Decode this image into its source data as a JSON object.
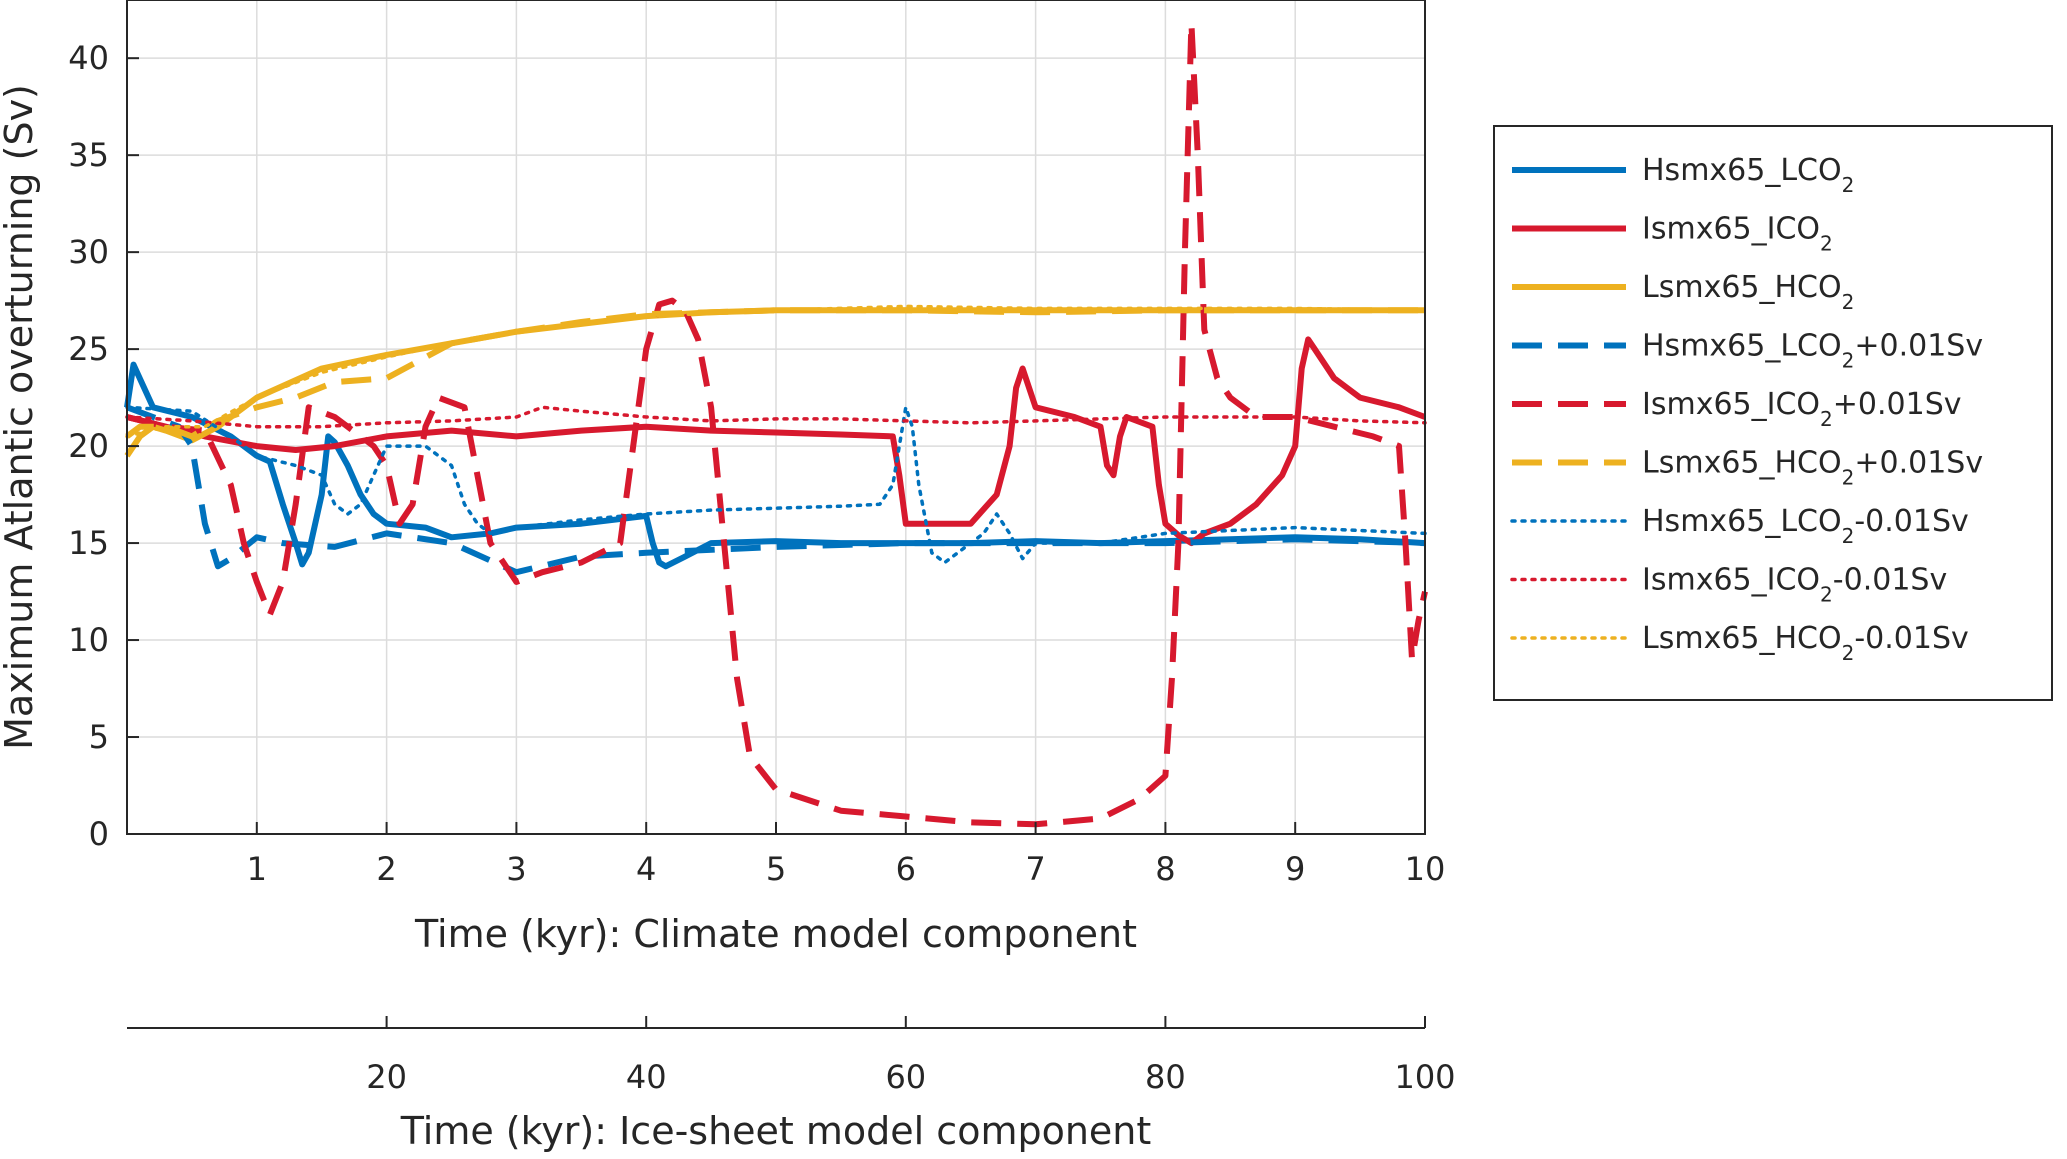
{
  "chart_data": {
    "type": "line",
    "ylabel": "Maximum Atlantic overturning (Sv)",
    "xlabel": "Time (kyr): Climate model component",
    "x2label": "Time (kyr): Ice-sheet model component",
    "xlim": [
      0,
      10
    ],
    "ylim": [
      0,
      43
    ],
    "x2lim": [
      0,
      100
    ],
    "xticks": [
      1,
      2,
      3,
      4,
      5,
      6,
      7,
      8,
      9,
      10
    ],
    "yticks": [
      0,
      5,
      10,
      15,
      20,
      25,
      30,
      35,
      40
    ],
    "x2ticks": [
      20,
      40,
      60,
      80,
      100
    ],
    "grid": true,
    "legend_position": "outside-right",
    "series": [
      {
        "name": "Hsmx65_LCO",
        "sub": "2",
        "suffix": "",
        "color": "#0072BD",
        "style": "solid",
        "x": [
          0,
          0.05,
          0.2,
          0.5,
          0.8,
          1.0,
          1.1,
          1.2,
          1.3,
          1.35,
          1.4,
          1.5,
          1.55,
          1.6,
          1.7,
          1.8,
          1.9,
          2.0,
          2.3,
          2.5,
          2.8,
          3.0,
          3.5,
          4.0,
          4.05,
          4.1,
          4.15,
          4.3,
          4.5,
          5,
          5.5,
          6,
          6.5,
          7,
          7.5,
          8,
          8.5,
          9,
          9.5,
          10
        ],
        "values": [
          22,
          24.2,
          22,
          21.5,
          20.5,
          19.5,
          19.2,
          17,
          15,
          13.9,
          14.5,
          17.5,
          20.5,
          20.2,
          19,
          17.5,
          16.5,
          16,
          15.8,
          15.3,
          15.5,
          15.8,
          16,
          16.4,
          15,
          14,
          13.8,
          14.3,
          15,
          15.1,
          15,
          15,
          15,
          15.1,
          15,
          15.1,
          15.2,
          15.3,
          15.2,
          15
        ]
      },
      {
        "name": "Ismx65_ICO",
        "sub": "2",
        "suffix": "",
        "color": "#D7192E",
        "style": "solid",
        "x": [
          0,
          0.3,
          0.6,
          1.0,
          1.3,
          1.6,
          2.0,
          2.5,
          3.0,
          3.5,
          4.0,
          4.5,
          5.0,
          5.5,
          5.9,
          5.95,
          6.0,
          6.2,
          6.5,
          6.7,
          6.8,
          6.85,
          6.9,
          7.0,
          7.3,
          7.5,
          7.55,
          7.6,
          7.65,
          7.7,
          7.9,
          7.95,
          8.0,
          8.1,
          8.2,
          8.3,
          8.5,
          8.7,
          8.9,
          9.0,
          9.05,
          9.1,
          9.15,
          9.3,
          9.5,
          9.8,
          10
        ],
        "values": [
          21.5,
          21.0,
          20.5,
          20.0,
          19.8,
          20.0,
          20.5,
          20.8,
          20.5,
          20.8,
          21.0,
          20.8,
          20.7,
          20.6,
          20.5,
          18.5,
          16.0,
          16.0,
          16.0,
          17.5,
          20.0,
          23.0,
          24.0,
          22.0,
          21.5,
          21.0,
          19.0,
          18.5,
          20.5,
          21.5,
          21.0,
          18.0,
          16.0,
          15.4,
          15.0,
          15.5,
          16.0,
          17.0,
          18.5,
          20.0,
          24.0,
          25.5,
          25.0,
          23.5,
          22.5,
          22.0,
          21.5
        ]
      },
      {
        "name": "Lsmx65_HCO",
        "sub": "2",
        "suffix": "",
        "color": "#EDB120",
        "style": "solid",
        "x": [
          0,
          0.1,
          0.2,
          0.3,
          0.5,
          0.7,
          1.0,
          1.5,
          2.0,
          2.5,
          3.0,
          3.5,
          4.0,
          4.5,
          5.0,
          6.0,
          7.0,
          8.0,
          9.0,
          10.0
        ],
        "values": [
          19.5,
          20.5,
          21,
          20.8,
          20.3,
          21.0,
          22.5,
          24.0,
          24.7,
          25.3,
          25.9,
          26.3,
          26.7,
          26.9,
          27.0,
          27.0,
          27.0,
          27.0,
          27.0,
          27.0
        ]
      },
      {
        "name": "Hsmx65_LCO",
        "sub": "2",
        "suffix": "+0.01Sv",
        "color": "#0072BD",
        "style": "dashed",
        "x": [
          0,
          0.2,
          0.4,
          0.5,
          0.6,
          0.7,
          0.8,
          1.0,
          1.2,
          1.6,
          2.0,
          2.5,
          3.0,
          3.5,
          4.0,
          5.0,
          6.0,
          7.0,
          8.0,
          9.0,
          10.0
        ],
        "values": [
          22,
          21.5,
          21.0,
          20.0,
          16.0,
          13.8,
          14.2,
          15.3,
          15.0,
          14.8,
          15.5,
          15.0,
          13.5,
          14.3,
          14.5,
          14.8,
          15.0,
          15.0,
          15.0,
          15.2,
          15.0
        ]
      },
      {
        "name": "Ismx65_ICO",
        "sub": "2",
        "suffix": "+0.01Sv",
        "color": "#D7192E",
        "style": "dashed",
        "x": [
          0,
          0.3,
          0.6,
          0.8,
          0.9,
          1.0,
          1.1,
          1.2,
          1.3,
          1.4,
          1.6,
          1.9,
          2.0,
          2.1,
          2.2,
          2.3,
          2.4,
          2.6,
          2.8,
          3.0,
          3.2,
          3.5,
          3.8,
          4.0,
          4.1,
          4.2,
          4.3,
          4.4,
          4.5,
          4.6,
          4.7,
          4.8,
          5.0,
          5.5,
          6.0,
          6.5,
          7.0,
          7.5,
          7.8,
          8.0,
          8.05,
          8.1,
          8.15,
          8.2,
          8.25,
          8.3,
          8.4,
          8.5,
          8.7,
          9.0,
          9.3,
          9.6,
          9.8,
          9.85,
          9.9,
          9.95,
          10.0
        ],
        "values": [
          21.5,
          21.0,
          20.8,
          18.0,
          15.0,
          13.0,
          11.3,
          13.0,
          17.0,
          22.0,
          21.5,
          20.0,
          19.0,
          16.0,
          17.0,
          21.0,
          22.5,
          22.0,
          15.0,
          13.0,
          13.5,
          14.0,
          15.0,
          25.0,
          27.3,
          27.5,
          27.0,
          25.5,
          22.0,
          15.0,
          8.0,
          4.0,
          2.3,
          1.2,
          0.9,
          0.6,
          0.5,
          0.8,
          1.8,
          3.0,
          8.0,
          15.0,
          30.0,
          41.8,
          35.0,
          26.0,
          23.5,
          22.5,
          21.5,
          21.5,
          21.0,
          20.5,
          20.0,
          15.0,
          9.0,
          11.0,
          12.5
        ]
      },
      {
        "name": "Lsmx65_HCO",
        "sub": "2",
        "suffix": "+0.01Sv",
        "color": "#EDB120",
        "style": "dashed",
        "x": [
          0,
          0.1,
          0.3,
          0.5,
          0.7,
          1.0,
          1.3,
          1.6,
          2.0,
          2.5,
          3.0,
          3.5,
          4.0,
          5.0,
          6.0,
          7.0,
          8.0,
          9.0,
          10.0
        ],
        "values": [
          20.5,
          21.0,
          21.0,
          20.5,
          21.3,
          22.0,
          22.5,
          23.3,
          23.5,
          25.3,
          25.9,
          26.4,
          26.8,
          27.0,
          27.0,
          26.9,
          27.0,
          27.0,
          27.0
        ]
      },
      {
        "name": "Hsmx65_LCO",
        "sub": "2",
        "suffix": "-0.01Sv",
        "color": "#0072BD",
        "style": "dotted",
        "x": [
          0,
          0.5,
          0.8,
          1.0,
          1.3,
          1.5,
          1.6,
          1.7,
          1.8,
          2.0,
          2.3,
          2.5,
          2.6,
          2.7,
          2.8,
          3.0,
          3.5,
          4.0,
          4.5,
          5.0,
          5.5,
          5.8,
          5.9,
          6.0,
          6.05,
          6.1,
          6.2,
          6.3,
          6.4,
          6.5,
          6.6,
          6.7,
          6.8,
          6.9,
          7.0,
          7.2,
          7.5,
          8.0,
          9.0,
          10.0
        ],
        "values": [
          22.0,
          21.8,
          20.5,
          19.5,
          19.0,
          18.5,
          17.0,
          16.5,
          17.0,
          20.0,
          20.0,
          19.0,
          17.0,
          16.0,
          15.5,
          15.8,
          16.2,
          16.5,
          16.7,
          16.8,
          16.9,
          17.0,
          18.0,
          22.0,
          21.0,
          18.0,
          14.5,
          14.0,
          14.5,
          15.0,
          15.5,
          16.5,
          15.5,
          14.2,
          15.0,
          15.0,
          15.0,
          15.5,
          15.8,
          15.5
        ]
      },
      {
        "name": "Ismx65_ICO",
        "sub": "2",
        "suffix": "-0.01Sv",
        "color": "#D7192E",
        "style": "dotted",
        "x": [
          0,
          0.5,
          1.0,
          1.5,
          2.0,
          2.5,
          3.0,
          3.2,
          3.5,
          4.0,
          4.5,
          5.0,
          5.5,
          6.0,
          6.5,
          7.0,
          7.5,
          8.0,
          8.5,
          9.0,
          9.5,
          10.0
        ],
        "values": [
          21.5,
          21.3,
          21.0,
          21.0,
          21.2,
          21.3,
          21.5,
          22.0,
          21.8,
          21.5,
          21.3,
          21.4,
          21.4,
          21.3,
          21.2,
          21.3,
          21.4,
          21.5,
          21.5,
          21.5,
          21.3,
          21.2
        ]
      },
      {
        "name": "Lsmx65_HCO",
        "sub": "2",
        "suffix": "-0.01Sv",
        "color": "#EDB120",
        "style": "dotted",
        "x": [
          0,
          0.3,
          0.6,
          1.0,
          1.5,
          2.0,
          2.5,
          3.0,
          3.5,
          4.0,
          5.0,
          6.0,
          7.0,
          8.0,
          9.0,
          10.0
        ],
        "values": [
          20.5,
          21.0,
          21.0,
          22.5,
          23.8,
          24.6,
          25.3,
          25.9,
          26.3,
          26.7,
          27.0,
          27.2,
          27.1,
          27.1,
          27.1,
          27.0
        ]
      }
    ]
  }
}
